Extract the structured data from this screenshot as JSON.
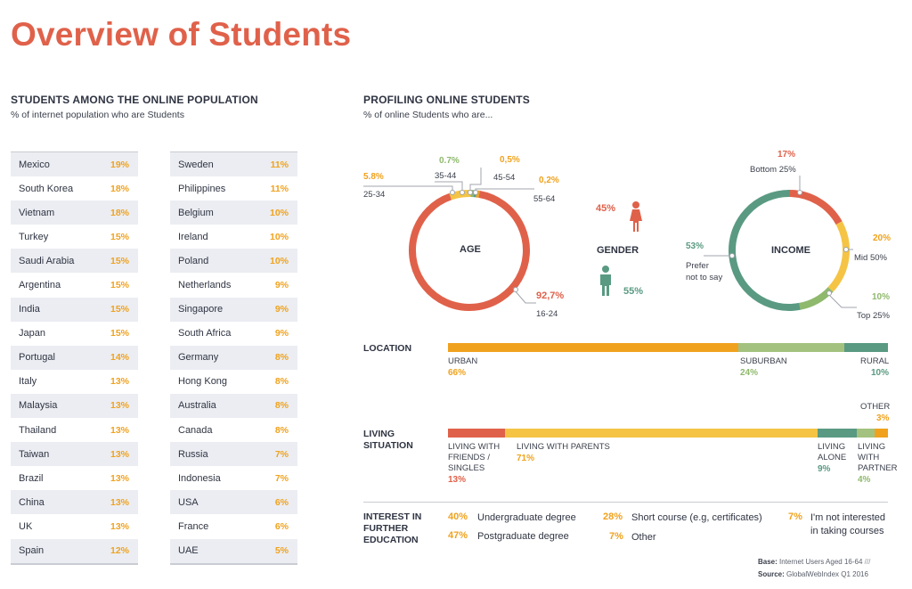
{
  "title": "Overview of Students",
  "left": {
    "heading": "STUDENTS AMONG THE ONLINE POPULATION",
    "subheading": "% of internet population who are Students",
    "table1": [
      {
        "country": "Mexico",
        "value": "19%"
      },
      {
        "country": "South Korea",
        "value": "18%"
      },
      {
        "country": "Vietnam",
        "value": "18%"
      },
      {
        "country": "Turkey",
        "value": "15%"
      },
      {
        "country": "Saudi Arabia",
        "value": "15%"
      },
      {
        "country": "Argentina",
        "value": "15%"
      },
      {
        "country": "India",
        "value": "15%"
      },
      {
        "country": "Japan",
        "value": "15%"
      },
      {
        "country": "Portugal",
        "value": "14%"
      },
      {
        "country": "Italy",
        "value": "13%"
      },
      {
        "country": "Malaysia",
        "value": "13%"
      },
      {
        "country": "Thailand",
        "value": "13%"
      },
      {
        "country": "Taiwan",
        "value": "13%"
      },
      {
        "country": "Brazil",
        "value": "13%"
      },
      {
        "country": "China",
        "value": "13%"
      },
      {
        "country": "UK",
        "value": "13%"
      },
      {
        "country": "Spain",
        "value": "12%"
      }
    ],
    "table2": [
      {
        "country": "Sweden",
        "value": "11%"
      },
      {
        "country": "Philippines",
        "value": "11%"
      },
      {
        "country": "Belgium",
        "value": "10%"
      },
      {
        "country": "Ireland",
        "value": "10%"
      },
      {
        "country": "Poland",
        "value": "10%"
      },
      {
        "country": "Netherlands",
        "value": "9%"
      },
      {
        "country": "Singapore",
        "value": "9%"
      },
      {
        "country": "South Africa",
        "value": "9%"
      },
      {
        "country": "Germany",
        "value": "8%"
      },
      {
        "country": "Hong Kong",
        "value": "8%"
      },
      {
        "country": "Australia",
        "value": "8%"
      },
      {
        "country": "Canada",
        "value": "8%"
      },
      {
        "country": "Russia",
        "value": "7%"
      },
      {
        "country": "Indonesia",
        "value": "7%"
      },
      {
        "country": "USA",
        "value": "6%"
      },
      {
        "country": "France",
        "value": "6%"
      },
      {
        "country": "UAE",
        "value": "5%"
      }
    ]
  },
  "right": {
    "heading": "PROFILING ONLINE STUDENTS",
    "subheading": "% of online Students who are..."
  },
  "chart_data": [
    {
      "type": "pie",
      "title": "AGE",
      "slices": [
        {
          "label": "16-24",
          "value": 92.7,
          "display": "92,7%",
          "color": "#e0614a"
        },
        {
          "label": "25-34",
          "value": 5.8,
          "display": "5.8%",
          "color": "#f5c445"
        },
        {
          "label": "35-44",
          "value": 0.7,
          "display": "0.7%",
          "color": "#8fb96d"
        },
        {
          "label": "45-54",
          "value": 0.5,
          "display": "0,5%",
          "color": "#5a9a82"
        },
        {
          "label": "55-64",
          "value": 0.2,
          "display": "0,2%",
          "color": "#f0a21e"
        }
      ]
    },
    {
      "type": "pie",
      "title": "GENDER",
      "slices": [
        {
          "label": "Female",
          "value": 45,
          "display": "45%",
          "color": "#e0614a"
        },
        {
          "label": "Male",
          "value": 55,
          "display": "55%",
          "color": "#5a9a82"
        }
      ]
    },
    {
      "type": "pie",
      "title": "INCOME",
      "slices": [
        {
          "label": "Bottom 25%",
          "value": 17,
          "display": "17%",
          "color": "#e0614a"
        },
        {
          "label": "Mid 50%",
          "value": 20,
          "display": "20%",
          "color": "#f5c445"
        },
        {
          "label": "Top 25%",
          "value": 10,
          "display": "10%",
          "color": "#8fb96d"
        },
        {
          "label": "Prefer not to say",
          "value": 53,
          "display": "53%",
          "color": "#5a9a82"
        }
      ]
    },
    {
      "type": "bar",
      "title": "LOCATION",
      "orientation": "stacked-horizontal",
      "segments": [
        {
          "label": "URBAN",
          "value": 66,
          "display": "66%",
          "color": "#f0a21e"
        },
        {
          "label": "SUBURBAN",
          "value": 24,
          "display": "24%",
          "color": "#a3c27f"
        },
        {
          "label": "RURAL",
          "value": 10,
          "display": "10%",
          "color": "#5a9a82"
        }
      ]
    },
    {
      "type": "bar",
      "title": "LIVING SITUATION",
      "orientation": "stacked-horizontal",
      "segments": [
        {
          "label": "LIVING WITH FRIENDS / SINGLES",
          "value": 13,
          "display": "13%",
          "color": "#e0614a"
        },
        {
          "label": "LIVING WITH PARENTS",
          "value": 71,
          "display": "71%",
          "color": "#f5c445"
        },
        {
          "label": "LIVING ALONE",
          "value": 9,
          "display": "9%",
          "color": "#5a9a82"
        },
        {
          "label": "LIVING WITH PARTNER",
          "value": 4,
          "display": "4%",
          "color": "#a3c27f"
        },
        {
          "label": "OTHER",
          "value": 3,
          "display": "3%",
          "color": "#f0a21e"
        }
      ]
    },
    {
      "type": "table",
      "title": "INTEREST IN FURTHER EDUCATION",
      "rows": [
        {
          "label": "Undergraduate degree",
          "display": "40%"
        },
        {
          "label": "Postgraduate degree",
          "display": "47%"
        },
        {
          "label": "Short course (e.g, certificates)",
          "display": "28%"
        },
        {
          "label": "Other",
          "display": "7%"
        },
        {
          "label": "I'm not interested in taking courses",
          "display": "7%"
        }
      ]
    }
  ],
  "labels": {
    "age_center": "AGE",
    "gender_center": "GENDER",
    "income_center": "INCOME",
    "location_head": "LOCATION",
    "living_head_1": "LIVING",
    "living_head_2": "SITUATION",
    "interest_head_1": "INTEREST IN",
    "interest_head_2": "FURTHER",
    "interest_head_3": "EDUCATION",
    "age_25_34": "25-34",
    "age_35_44": "35-44",
    "age_45_54": "45-54",
    "age_55_64": "55-64",
    "age_16_24": "16-24",
    "income_bottom": "Bottom 25%",
    "income_mid": "Mid 50%",
    "income_top": "Top 25%",
    "income_prefer_1": "Prefer",
    "income_prefer_2": "not to say",
    "loc_urban": "URBAN",
    "loc_suburban": "SUBURBAN",
    "loc_rural": "RURAL",
    "liv_friends_1": "LIVING WITH",
    "liv_friends_2": "FRIENDS /",
    "liv_friends_3": "SINGLES",
    "liv_parents": "LIVING WITH PARENTS",
    "liv_alone_1": "LIVING",
    "liv_alone_2": "ALONE",
    "liv_partner_1": "LIVING",
    "liv_partner_2": "WITH",
    "liv_partner_3": "PARTNER",
    "liv_other": "OTHER",
    "int_undergrad": "Undergraduate degree",
    "int_postgrad": "Postgraduate degree",
    "int_short": "Short course (e.g, certificates)",
    "int_other": "Other",
    "int_not_1": "I'm not interested",
    "int_not_2": "in taking courses"
  },
  "values": {
    "age_16_24": "92,7%",
    "age_25_34": "5.8%",
    "age_35_44": "0.7%",
    "age_45_54": "0,5%",
    "age_55_64": "0,2%",
    "gender_female": "45%",
    "gender_male": "55%",
    "income_bottom": "17%",
    "income_mid": "20%",
    "income_top": "10%",
    "income_prefer": "53%",
    "loc_urban": "66%",
    "loc_suburban": "24%",
    "loc_rural": "10%",
    "liv_friends": "13%",
    "liv_parents": "71%",
    "liv_alone": "9%",
    "liv_partner": "4%",
    "liv_other": "3%",
    "int_undergrad": "40%",
    "int_postgrad": "47%",
    "int_short": "28%",
    "int_other": "7%",
    "int_not": "7%"
  },
  "footer": {
    "base_label": "Base:",
    "base_text": "Internet Users Aged 16-64",
    "source_label": "Source:",
    "source_text": "GlobalWebIndex Q1 2016"
  }
}
